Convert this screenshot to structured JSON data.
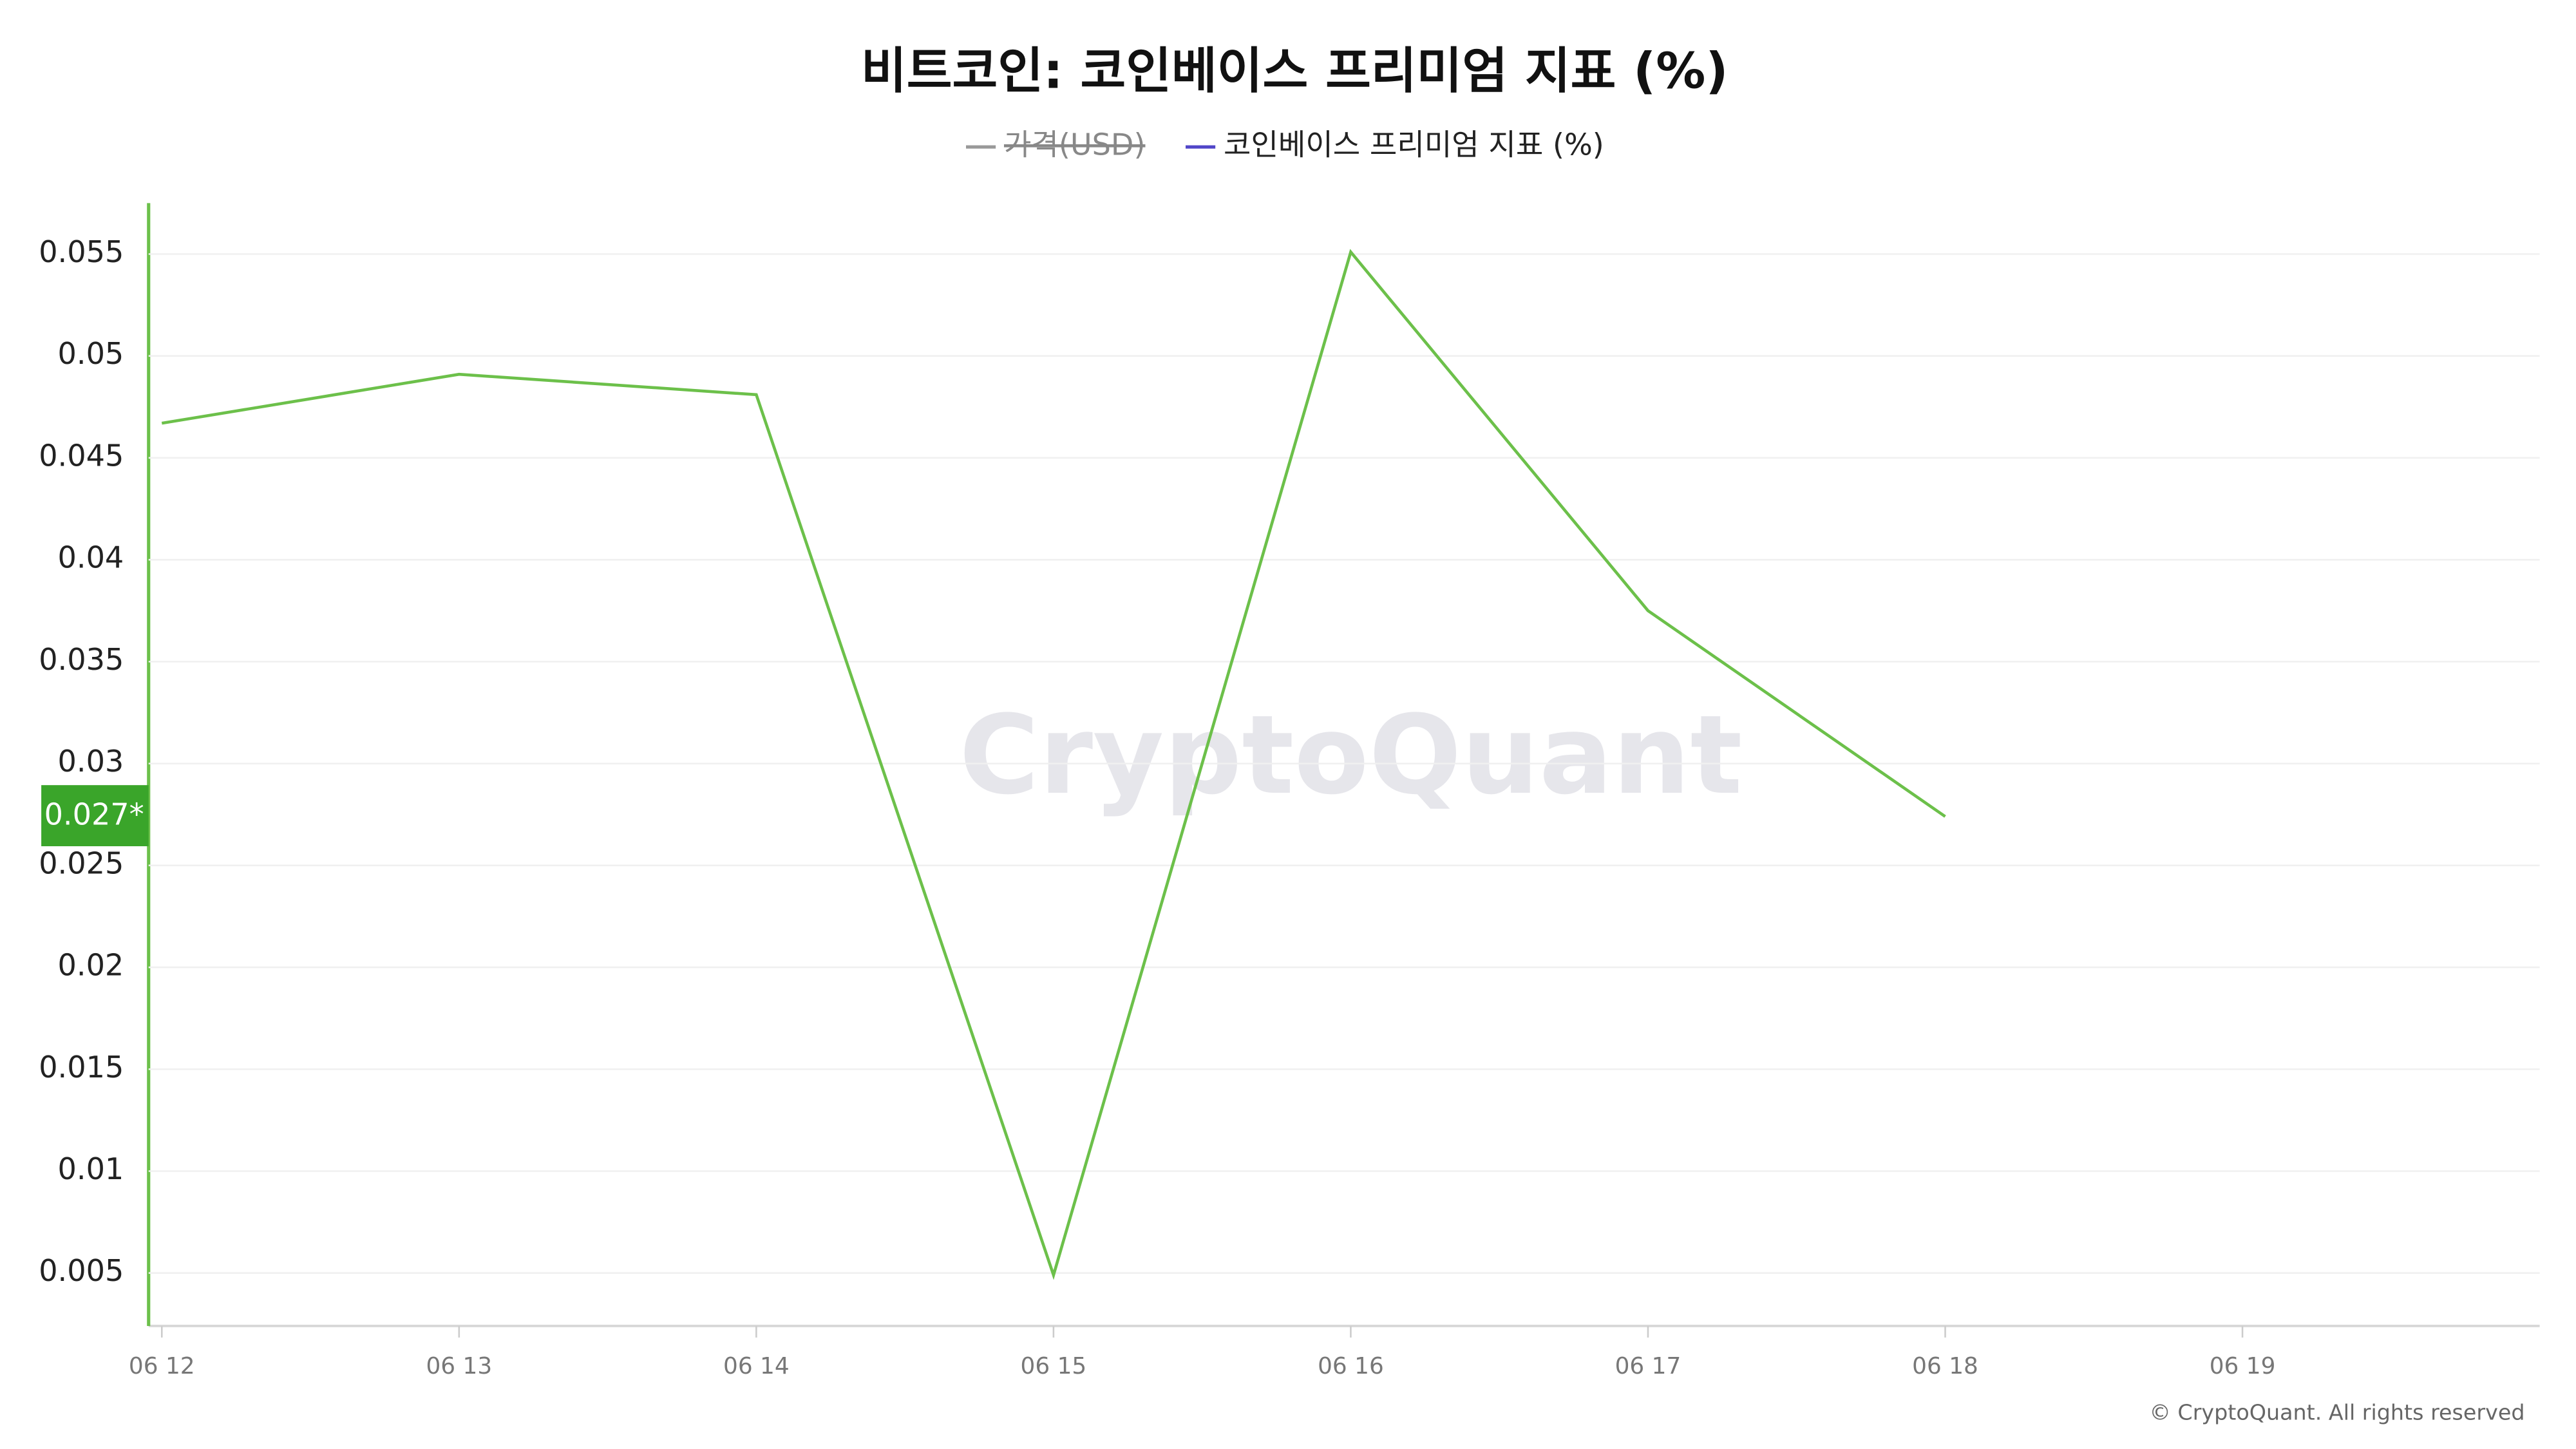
{
  "chart_data": {
    "type": "line",
    "title": "비트코인: 코인베이스 프리미엄 지표 (%)",
    "hidden_series": {
      "name": "가격(USD)",
      "color": "#999999"
    },
    "legend_color": "#5046c8",
    "categories": [
      "06 12",
      "06 13",
      "06 14",
      "06 15",
      "06 16",
      "06 17",
      "06 18",
      "06 19"
    ],
    "series": [
      {
        "name": "코인베이스 프리미엄 지표 (%)",
        "color": "#6cc04a",
        "values": [
          0.0467,
          0.0491,
          0.0481,
          0.0049,
          0.0551,
          0.0375,
          0.0274,
          null
        ],
        "value_labels": [
          null,
          null,
          null,
          null,
          null,
          null,
          "0.027*",
          null
        ]
      }
    ],
    "ylim": [
      0.0024,
      0.0575
    ],
    "yticks": [
      0.005,
      0.01,
      0.015,
      0.02,
      0.025,
      0.03,
      0.035,
      0.04,
      0.045,
      0.05,
      0.055
    ],
    "grid": true,
    "watermark": "CryptoQuant",
    "footer": "© CryptoQuant. All rights reserved"
  }
}
